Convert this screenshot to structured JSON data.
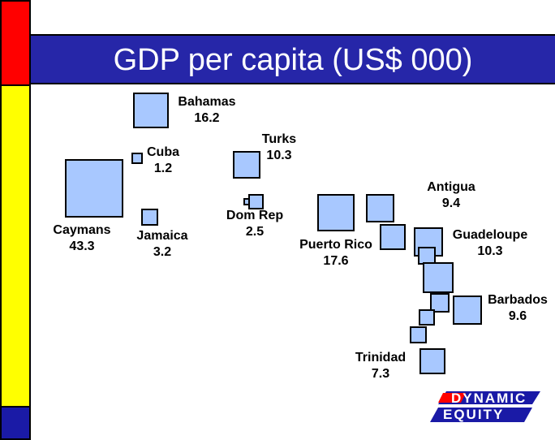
{
  "chart_data": {
    "type": "bubble-map",
    "title": "GDP per capita (US$ 000)",
    "unit": "US$ 000",
    "points": [
      {
        "name": "Bahamas",
        "value": "16.2"
      },
      {
        "name": "Cuba",
        "value": "1.2"
      },
      {
        "name": "Turks",
        "value": "10.3"
      },
      {
        "name": "Caymans",
        "value": "43.3"
      },
      {
        "name": "Jamaica",
        "value": "3.2"
      },
      {
        "name": "Dom Rep",
        "value": "2.5"
      },
      {
        "name": "Puerto Rico",
        "value": "17.6"
      },
      {
        "name": "Antigua",
        "value": "9.4"
      },
      {
        "name": "Guadeloupe",
        "value": "10.3"
      },
      {
        "name": "Barbados",
        "value": "9.6"
      },
      {
        "name": "Trinidad",
        "value": "7.3"
      }
    ]
  },
  "logo": {
    "line1": "DYNAMIC",
    "line2": "EQUITY"
  },
  "colors": {
    "box_fill": "#a8c8ff",
    "title_bg": "#2626a8",
    "red": "#ff0000",
    "yellow": "#ffff00",
    "blue": "#1a1aa6"
  }
}
